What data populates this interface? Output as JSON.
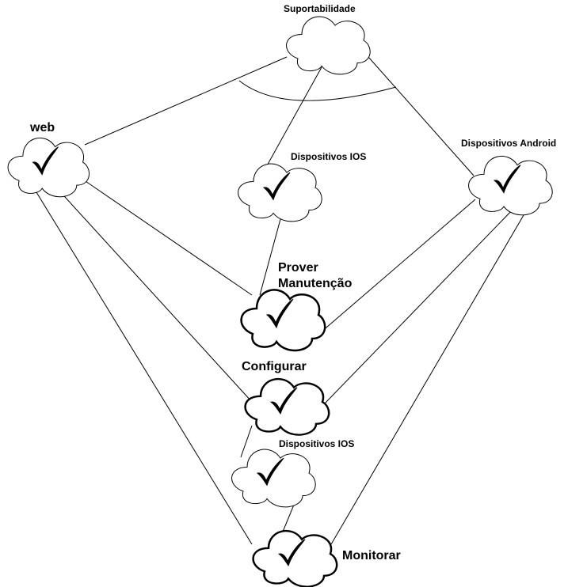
{
  "nodes": [
    {
      "id": "suportabilidade",
      "label": "Suportabilidade",
      "checked": false
    },
    {
      "id": "web",
      "label": "web",
      "checked": true
    },
    {
      "id": "ios-top",
      "label": "Dispositivos IOS",
      "checked": true
    },
    {
      "id": "android",
      "label": "Dispositivos Android",
      "checked": true
    },
    {
      "id": "prover",
      "label_line1": "Prover",
      "label_line2": "Manutenção",
      "checked": true
    },
    {
      "id": "configurar",
      "label": "Configurar",
      "checked": true
    },
    {
      "id": "ios-bottom",
      "label": "Dispositivos IOS",
      "checked": true
    },
    {
      "id": "monitorar",
      "label": "Monitorar",
      "checked": true
    }
  ],
  "edges": [
    [
      "suportabilidade",
      "web"
    ],
    [
      "suportabilidade",
      "ios-top"
    ],
    [
      "suportabilidade",
      "android"
    ],
    [
      "web",
      "prover"
    ],
    [
      "web",
      "configurar"
    ],
    [
      "web",
      "monitorar"
    ],
    [
      "ios-top",
      "prover"
    ],
    [
      "android",
      "prover"
    ],
    [
      "android",
      "configurar"
    ],
    [
      "android",
      "monitorar"
    ],
    [
      "configurar",
      "ios-bottom"
    ],
    [
      "ios-bottom",
      "monitorar"
    ]
  ],
  "colors": {
    "stroke": "#000000",
    "fill": "#ffffff"
  }
}
